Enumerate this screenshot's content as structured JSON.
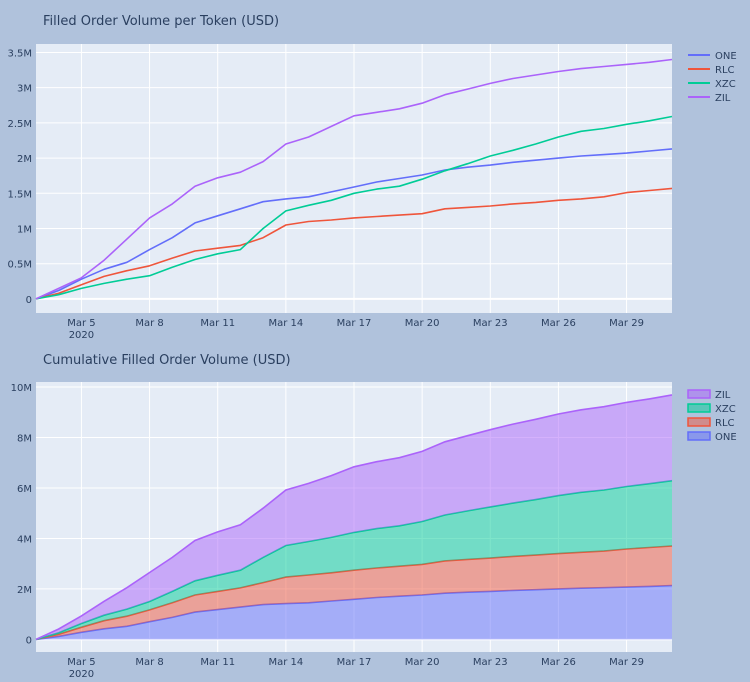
{
  "chart_data": [
    {
      "type": "line",
      "title": "Filled Order Volume per Token (USD)",
      "xlabel": "",
      "ylabel": "",
      "x_range": [
        "2020-03-03",
        "2020-03-31"
      ],
      "ylim": [
        -200000,
        3620000
      ],
      "y_ticks": [
        0,
        500000,
        1000000,
        1500000,
        2000000,
        2500000,
        3000000,
        3500000
      ],
      "y_tick_labels": [
        "0",
        "0.5M",
        "1M",
        "1.5M",
        "2M",
        "2.5M",
        "3M",
        "3.5M"
      ],
      "x_ticks": [
        "2020-03-05",
        "2020-03-08",
        "2020-03-11",
        "2020-03-14",
        "2020-03-17",
        "2020-03-20",
        "2020-03-23",
        "2020-03-26",
        "2020-03-29"
      ],
      "x_tick_labels": [
        "Mar 5",
        "Mar 8",
        "Mar 11",
        "Mar 14",
        "Mar 17",
        "Mar 20",
        "Mar 23",
        "Mar 26",
        "Mar 29"
      ],
      "x_tick_sublabel": "2020",
      "grid": true,
      "legend_position": "right",
      "series": [
        {
          "name": "ONE",
          "color": "#636efa",
          "x": [
            "2020-03-03",
            "2020-03-04",
            "2020-03-05",
            "2020-03-06",
            "2020-03-07",
            "2020-03-08",
            "2020-03-09",
            "2020-03-10",
            "2020-03-11",
            "2020-03-12",
            "2020-03-13",
            "2020-03-14",
            "2020-03-15",
            "2020-03-16",
            "2020-03-17",
            "2020-03-18",
            "2020-03-19",
            "2020-03-20",
            "2020-03-21",
            "2020-03-22",
            "2020-03-23",
            "2020-03-24",
            "2020-03-25",
            "2020-03-26",
            "2020-03-27",
            "2020-03-28",
            "2020-03-29",
            "2020-03-30",
            "2020-03-31"
          ],
          "values": [
            0,
            120000,
            280000,
            420000,
            520000,
            700000,
            870000,
            1080000,
            1180000,
            1280000,
            1380000,
            1420000,
            1450000,
            1520000,
            1590000,
            1660000,
            1710000,
            1760000,
            1830000,
            1870000,
            1900000,
            1940000,
            1970000,
            2000000,
            2030000,
            2050000,
            2070000,
            2100000,
            2130000
          ]
        },
        {
          "name": "RLC",
          "color": "#ef553b",
          "x": [
            "2020-03-03",
            "2020-03-04",
            "2020-03-05",
            "2020-03-06",
            "2020-03-07",
            "2020-03-08",
            "2020-03-09",
            "2020-03-10",
            "2020-03-11",
            "2020-03-12",
            "2020-03-13",
            "2020-03-14",
            "2020-03-15",
            "2020-03-16",
            "2020-03-17",
            "2020-03-18",
            "2020-03-19",
            "2020-03-20",
            "2020-03-21",
            "2020-03-22",
            "2020-03-23",
            "2020-03-24",
            "2020-03-25",
            "2020-03-26",
            "2020-03-27",
            "2020-03-28",
            "2020-03-29",
            "2020-03-30",
            "2020-03-31"
          ],
          "values": [
            0,
            80000,
            200000,
            320000,
            400000,
            470000,
            580000,
            680000,
            720000,
            760000,
            870000,
            1050000,
            1100000,
            1120000,
            1150000,
            1170000,
            1190000,
            1210000,
            1280000,
            1300000,
            1320000,
            1350000,
            1370000,
            1400000,
            1420000,
            1450000,
            1510000,
            1540000,
            1570000
          ]
        },
        {
          "name": "XZC",
          "color": "#00cc96",
          "x": [
            "2020-03-03",
            "2020-03-04",
            "2020-03-05",
            "2020-03-06",
            "2020-03-07",
            "2020-03-08",
            "2020-03-09",
            "2020-03-10",
            "2020-03-11",
            "2020-03-12",
            "2020-03-13",
            "2020-03-14",
            "2020-03-15",
            "2020-03-16",
            "2020-03-17",
            "2020-03-18",
            "2020-03-19",
            "2020-03-20",
            "2020-03-21",
            "2020-03-22",
            "2020-03-23",
            "2020-03-24",
            "2020-03-25",
            "2020-03-26",
            "2020-03-27",
            "2020-03-28",
            "2020-03-29",
            "2020-03-30",
            "2020-03-31"
          ],
          "values": [
            0,
            60000,
            150000,
            220000,
            280000,
            330000,
            450000,
            560000,
            640000,
            700000,
            1000000,
            1250000,
            1330000,
            1400000,
            1500000,
            1560000,
            1600000,
            1700000,
            1820000,
            1920000,
            2030000,
            2110000,
            2200000,
            2300000,
            2380000,
            2420000,
            2480000,
            2530000,
            2590000
          ]
        },
        {
          "name": "ZIL",
          "color": "#ab63fa",
          "x": [
            "2020-03-03",
            "2020-03-04",
            "2020-03-05",
            "2020-03-06",
            "2020-03-07",
            "2020-03-08",
            "2020-03-09",
            "2020-03-10",
            "2020-03-11",
            "2020-03-12",
            "2020-03-13",
            "2020-03-14",
            "2020-03-15",
            "2020-03-16",
            "2020-03-17",
            "2020-03-18",
            "2020-03-19",
            "2020-03-20",
            "2020-03-21",
            "2020-03-22",
            "2020-03-23",
            "2020-03-24",
            "2020-03-25",
            "2020-03-26",
            "2020-03-27",
            "2020-03-28",
            "2020-03-29",
            "2020-03-30",
            "2020-03-31"
          ],
          "values": [
            0,
            150000,
            300000,
            550000,
            850000,
            1150000,
            1350000,
            1600000,
            1720000,
            1800000,
            1950000,
            2200000,
            2300000,
            2450000,
            2600000,
            2650000,
            2700000,
            2780000,
            2900000,
            2980000,
            3060000,
            3130000,
            3180000,
            3230000,
            3270000,
            3300000,
            3330000,
            3360000,
            3400000
          ]
        }
      ]
    },
    {
      "type": "area",
      "stacked": true,
      "title": "Cumulative Filled Order Volume (USD)",
      "xlabel": "",
      "ylabel": "",
      "x_range": [
        "2020-03-03",
        "2020-03-31"
      ],
      "ylim": [
        -500000,
        10200000
      ],
      "y_ticks": [
        0,
        2000000,
        4000000,
        6000000,
        8000000,
        10000000
      ],
      "y_tick_labels": [
        "0",
        "2M",
        "4M",
        "6M",
        "8M",
        "10M"
      ],
      "x_ticks": [
        "2020-03-05",
        "2020-03-08",
        "2020-03-11",
        "2020-03-14",
        "2020-03-17",
        "2020-03-20",
        "2020-03-23",
        "2020-03-26",
        "2020-03-29"
      ],
      "x_tick_labels": [
        "Mar 5",
        "Mar 8",
        "Mar 11",
        "Mar 14",
        "Mar 17",
        "Mar 20",
        "Mar 23",
        "Mar 26",
        "Mar 29"
      ],
      "x_tick_sublabel": "2020",
      "grid": true,
      "legend_position": "right",
      "legend_order": [
        "ZIL",
        "XZC",
        "RLC",
        "ONE"
      ],
      "series": [
        {
          "name": "ONE",
          "color": "#636efa",
          "stack_order": 1
        },
        {
          "name": "RLC",
          "color": "#ef553b",
          "stack_order": 2
        },
        {
          "name": "XZC",
          "color": "#00cc96",
          "stack_order": 3
        },
        {
          "name": "ZIL",
          "color": "#ab63fa",
          "stack_order": 4
        }
      ],
      "values_from": "same daily cumulative values as the per-token chart, stacked ONE, RLC, XZC, ZIL"
    }
  ]
}
